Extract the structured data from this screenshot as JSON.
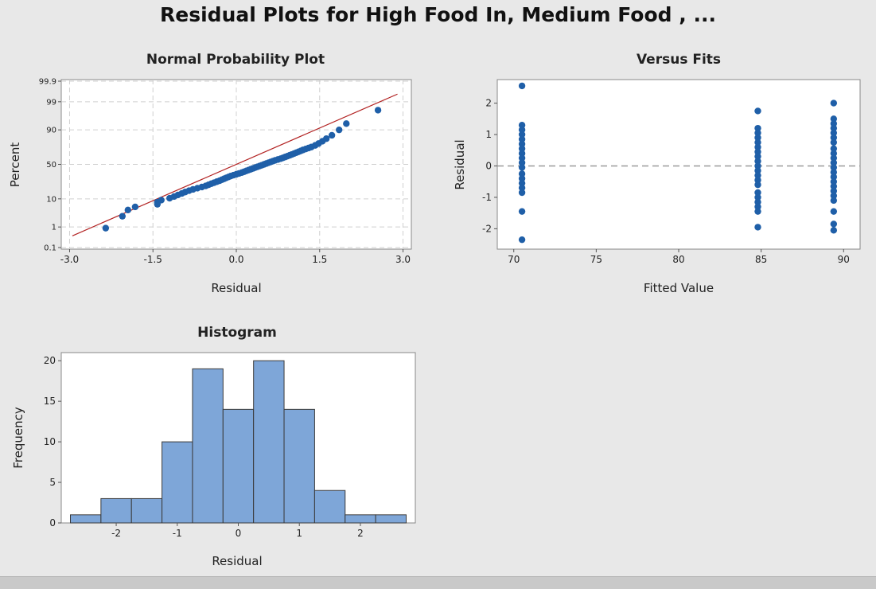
{
  "title": "Residual Plots for High Food In, Medium Food , ...",
  "colors": {
    "point": "#1f5fa8",
    "fit_line": "#b22222",
    "bar_fill": "#7ea6d8",
    "bar_edge": "#3a3a3a",
    "grid": "#d0d0d0",
    "zero_line": "#999999",
    "panel_bg": "#ffffff"
  },
  "chart_data": [
    {
      "id": "normal-probability",
      "type": "scatter",
      "title": "Normal Probability Plot",
      "xlabel": "Residual",
      "ylabel": "Percent",
      "xlim": [
        -3.15,
        3.15
      ],
      "ylim": [
        0.1,
        99.9
      ],
      "yscale": "normal-probability",
      "xticks": [
        "-3.0",
        "-1.5",
        "0.0",
        "1.5",
        "3.0"
      ],
      "xtick_values": [
        -3.0,
        -1.5,
        0.0,
        1.5,
        3.0
      ],
      "yticks": [
        "0.1",
        "1",
        "10",
        "50",
        "90",
        "99",
        "99.9"
      ],
      "ytick_values": [
        0.1,
        1,
        10,
        50,
        90,
        99,
        99.9
      ],
      "grid": true,
      "fit_line": {
        "mean": 0.0,
        "sd": 1.0
      },
      "points": [
        {
          "x": -2.35,
          "y": 0.89
        },
        {
          "x": -2.05,
          "y": 2.7
        },
        {
          "x": -1.95,
          "y": 4.5
        },
        {
          "x": -1.82,
          "y": 5.7
        },
        {
          "x": -1.42,
          "y": 6.9
        },
        {
          "x": -1.42,
          "y": 8.0
        },
        {
          "x": -1.35,
          "y": 9.2
        },
        {
          "x": -1.2,
          "y": 10.4
        },
        {
          "x": -1.12,
          "y": 11.6
        },
        {
          "x": -1.05,
          "y": 12.8
        },
        {
          "x": -0.98,
          "y": 14.0
        },
        {
          "x": -0.92,
          "y": 15.2
        },
        {
          "x": -0.85,
          "y": 16.4
        },
        {
          "x": -0.78,
          "y": 17.6
        },
        {
          "x": -0.7,
          "y": 18.8
        },
        {
          "x": -0.62,
          "y": 20.0
        },
        {
          "x": -0.55,
          "y": 21.2
        },
        {
          "x": -0.5,
          "y": 22.4
        },
        {
          "x": -0.45,
          "y": 23.6
        },
        {
          "x": -0.4,
          "y": 24.8
        },
        {
          "x": -0.35,
          "y": 26.0
        },
        {
          "x": -0.3,
          "y": 27.2
        },
        {
          "x": -0.26,
          "y": 28.4
        },
        {
          "x": -0.22,
          "y": 29.6
        },
        {
          "x": -0.18,
          "y": 30.8
        },
        {
          "x": -0.14,
          "y": 32.0
        },
        {
          "x": -0.1,
          "y": 33.2
        },
        {
          "x": -0.05,
          "y": 34.4
        },
        {
          "x": 0.0,
          "y": 35.6
        },
        {
          "x": 0.05,
          "y": 36.8
        },
        {
          "x": 0.1,
          "y": 38.0
        },
        {
          "x": 0.14,
          "y": 39.2
        },
        {
          "x": 0.18,
          "y": 40.4
        },
        {
          "x": 0.22,
          "y": 41.6
        },
        {
          "x": 0.26,
          "y": 42.8
        },
        {
          "x": 0.3,
          "y": 44.0
        },
        {
          "x": 0.34,
          "y": 45.2
        },
        {
          "x": 0.38,
          "y": 46.4
        },
        {
          "x": 0.42,
          "y": 47.6
        },
        {
          "x": 0.46,
          "y": 48.8
        },
        {
          "x": 0.5,
          "y": 50.0
        },
        {
          "x": 0.54,
          "y": 51.2
        },
        {
          "x": 0.58,
          "y": 52.4
        },
        {
          "x": 0.62,
          "y": 53.6
        },
        {
          "x": 0.66,
          "y": 54.8
        },
        {
          "x": 0.7,
          "y": 56.0
        },
        {
          "x": 0.75,
          "y": 57.2
        },
        {
          "x": 0.8,
          "y": 58.4
        },
        {
          "x": 0.84,
          "y": 59.6
        },
        {
          "x": 0.88,
          "y": 60.8
        },
        {
          "x": 0.92,
          "y": 62.0
        },
        {
          "x": 0.96,
          "y": 63.2
        },
        {
          "x": 1.0,
          "y": 64.4
        },
        {
          "x": 1.04,
          "y": 65.6
        },
        {
          "x": 1.08,
          "y": 66.8
        },
        {
          "x": 1.12,
          "y": 68.0
        },
        {
          "x": 1.16,
          "y": 69.2
        },
        {
          "x": 1.2,
          "y": 70.4
        },
        {
          "x": 1.25,
          "y": 71.6
        },
        {
          "x": 1.3,
          "y": 72.8
        },
        {
          "x": 1.35,
          "y": 74.0
        },
        {
          "x": 1.42,
          "y": 76.0
        },
        {
          "x": 1.48,
          "y": 78.0
        },
        {
          "x": 1.55,
          "y": 80.5
        },
        {
          "x": 1.62,
          "y": 83.0
        },
        {
          "x": 1.72,
          "y": 86.0
        },
        {
          "x": 1.85,
          "y": 90.0
        },
        {
          "x": 1.98,
          "y": 93.5
        },
        {
          "x": 2.55,
          "y": 97.8
        }
      ]
    },
    {
      "id": "versus-fits",
      "type": "scatter",
      "title": "Versus Fits",
      "xlabel": "Fitted Value",
      "ylabel": "Residual",
      "xlim": [
        69,
        91
      ],
      "ylim": [
        -2.65,
        2.75
      ],
      "xticks": [
        "70",
        "75",
        "80",
        "85",
        "90"
      ],
      "xtick_values": [
        70,
        75,
        80,
        85,
        90
      ],
      "yticks": [
        "-2",
        "-1",
        "0",
        "1",
        "2"
      ],
      "ytick_values": [
        -2,
        -1,
        0,
        1,
        2
      ],
      "reference_line": 0,
      "points": [
        {
          "x": 70.5,
          "y": 2.55
        },
        {
          "x": 70.5,
          "y": 1.3
        },
        {
          "x": 70.5,
          "y": 1.15
        },
        {
          "x": 70.5,
          "y": 1.0
        },
        {
          "x": 70.5,
          "y": 0.85
        },
        {
          "x": 70.5,
          "y": 0.7
        },
        {
          "x": 70.5,
          "y": 0.55
        },
        {
          "x": 70.5,
          "y": 0.4
        },
        {
          "x": 70.5,
          "y": 0.25
        },
        {
          "x": 70.5,
          "y": 0.1
        },
        {
          "x": 70.5,
          "y": -0.05
        },
        {
          "x": 70.5,
          "y": -0.25
        },
        {
          "x": 70.5,
          "y": -0.4
        },
        {
          "x": 70.5,
          "y": -0.55
        },
        {
          "x": 70.5,
          "y": -0.7
        },
        {
          "x": 70.5,
          "y": -0.85
        },
        {
          "x": 70.5,
          "y": -1.45
        },
        {
          "x": 70.5,
          "y": -2.35
        },
        {
          "x": 84.8,
          "y": 1.75
        },
        {
          "x": 84.8,
          "y": 1.2
        },
        {
          "x": 84.8,
          "y": 1.05
        },
        {
          "x": 84.8,
          "y": 0.9
        },
        {
          "x": 84.8,
          "y": 0.75
        },
        {
          "x": 84.8,
          "y": 0.6
        },
        {
          "x": 84.8,
          "y": 0.45
        },
        {
          "x": 84.8,
          "y": 0.3
        },
        {
          "x": 84.8,
          "y": 0.15
        },
        {
          "x": 84.8,
          "y": 0.0
        },
        {
          "x": 84.8,
          "y": -0.15
        },
        {
          "x": 84.8,
          "y": -0.3
        },
        {
          "x": 84.8,
          "y": -0.45
        },
        {
          "x": 84.8,
          "y": -0.6
        },
        {
          "x": 84.8,
          "y": -0.85
        },
        {
          "x": 84.8,
          "y": -1.0
        },
        {
          "x": 84.8,
          "y": -1.15
        },
        {
          "x": 84.8,
          "y": -1.3
        },
        {
          "x": 84.8,
          "y": -1.45
        },
        {
          "x": 84.8,
          "y": -1.95
        },
        {
          "x": 89.4,
          "y": 2.0
        },
        {
          "x": 89.4,
          "y": 1.5
        },
        {
          "x": 89.4,
          "y": 1.35
        },
        {
          "x": 89.4,
          "y": 1.2
        },
        {
          "x": 89.4,
          "y": 1.05
        },
        {
          "x": 89.4,
          "y": 0.9
        },
        {
          "x": 89.4,
          "y": 0.75
        },
        {
          "x": 89.4,
          "y": 0.55
        },
        {
          "x": 89.4,
          "y": 0.4
        },
        {
          "x": 89.4,
          "y": 0.25
        },
        {
          "x": 89.4,
          "y": 0.1
        },
        {
          "x": 89.4,
          "y": -0.05
        },
        {
          "x": 89.4,
          "y": -0.2
        },
        {
          "x": 89.4,
          "y": -0.35
        },
        {
          "x": 89.4,
          "y": -0.5
        },
        {
          "x": 89.4,
          "y": -0.65
        },
        {
          "x": 89.4,
          "y": -0.8
        },
        {
          "x": 89.4,
          "y": -0.95
        },
        {
          "x": 89.4,
          "y": -1.1
        },
        {
          "x": 89.4,
          "y": -1.45
        },
        {
          "x": 89.4,
          "y": -1.85
        },
        {
          "x": 89.4,
          "y": -2.05
        }
      ]
    },
    {
      "id": "histogram",
      "type": "bar",
      "title": "Histogram",
      "xlabel": "Residual",
      "ylabel": "Frequency",
      "xlim": [
        -2.9,
        2.9
      ],
      "ylim": [
        0,
        21
      ],
      "xticks": [
        "-2",
        "-1",
        "0",
        "1",
        "2"
      ],
      "xtick_values": [
        -2,
        -1,
        0,
        1,
        2
      ],
      "yticks": [
        "0",
        "5",
        "10",
        "15",
        "20"
      ],
      "ytick_values": [
        0,
        5,
        10,
        15,
        20
      ],
      "bin_edges": [
        -2.75,
        -2.25,
        -1.75,
        -1.25,
        -0.75,
        -0.25,
        0.25,
        0.75,
        1.25,
        1.75,
        2.25,
        2.75
      ],
      "values": [
        1,
        3,
        3,
        10,
        19,
        14,
        20,
        14,
        4,
        1,
        1
      ]
    }
  ]
}
